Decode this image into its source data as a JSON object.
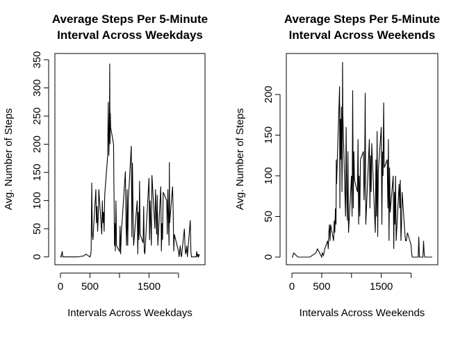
{
  "chart_data": [
    {
      "type": "line",
      "title": [
        "Average Steps Per 5-Minute",
        "Interval Across Weekdays"
      ],
      "x_label": "Intervals Across Weekdays",
      "y_label": "Avg. Number of Steps",
      "color": "#000000",
      "xlim": [
        -94.2,
        2449.2
      ],
      "ylim": [
        -13.9,
        361.1
      ],
      "xticks": [
        0,
        500,
        {
          "value": 1000,
          "label": null
        },
        1500,
        {
          "value": 2000,
          "label": null
        }
      ],
      "yticks": [
        0,
        50,
        100,
        150,
        200,
        250,
        300,
        350
      ],
      "x": [
        0,
        10,
        30,
        40,
        100,
        200,
        300,
        400,
        430,
        500,
        510,
        520,
        530,
        540,
        550,
        600,
        610,
        620,
        630,
        640,
        650,
        700,
        710,
        720,
        730,
        740,
        750,
        800,
        810,
        820,
        830,
        835,
        840,
        845,
        850,
        900,
        905,
        910,
        915,
        920,
        930,
        940,
        950,
        1000,
        1010,
        1020,
        1030,
        1100,
        1110,
        1120,
        1130,
        1140,
        1150,
        1200,
        1210,
        1220,
        1230,
        1240,
        1300,
        1310,
        1320,
        1330,
        1340,
        1350,
        1400,
        1410,
        1420,
        1430,
        1500,
        1510,
        1520,
        1530,
        1540,
        1550,
        1600,
        1610,
        1620,
        1630,
        1640,
        1650,
        1700,
        1710,
        1720,
        1730,
        1740,
        1800,
        1810,
        1820,
        1830,
        1840,
        1845,
        1850,
        1900,
        1910,
        1920,
        1930,
        2000,
        2010,
        2030,
        2040,
        2050,
        2100,
        2110,
        2120,
        2130,
        2140,
        2150,
        2200,
        2210,
        2220,
        2300,
        2310,
        2320,
        2330,
        2340,
        2355
      ],
      "values": [
        2,
        0,
        10,
        0,
        0,
        0,
        0,
        2,
        5,
        0,
        3,
        10,
        132,
        40,
        30,
        120,
        60,
        90,
        45,
        70,
        120,
        40,
        100,
        60,
        80,
        45,
        110,
        180,
        275,
        180,
        240,
        343,
        200,
        255,
        230,
        200,
        135,
        90,
        20,
        60,
        10,
        100,
        20,
        10,
        55,
        5,
        40,
        152,
        60,
        20,
        120,
        20,
        100,
        197,
        35,
        167,
        80,
        20,
        100,
        5,
        80,
        30,
        135,
        40,
        25,
        90,
        10,
        5,
        140,
        30,
        100,
        60,
        20,
        145,
        50,
        120,
        80,
        40,
        110,
        20,
        125,
        10,
        60,
        30,
        115,
        100,
        40,
        120,
        70,
        20,
        168,
        60,
        125,
        80,
        10,
        40,
        10,
        0,
        20,
        5,
        0,
        50,
        20,
        5,
        10,
        20,
        0,
        65,
        10,
        0,
        0,
        10,
        0,
        5,
        0,
        5
      ]
    },
    {
      "type": "line",
      "title": [
        "Average Steps Per 5-Minute",
        "Interval Across Weekends"
      ],
      "x_label": "Intervals Across Weekends",
      "y_label": "Avg. Number of Steps",
      "color": "#000000",
      "xlim": [
        -94.2,
        2449.2
      ],
      "ylim": [
        -9.4,
        250.4
      ],
      "xticks": [
        0,
        500,
        {
          "value": 1000,
          "label": null
        },
        1500,
        {
          "value": 2000,
          "label": null
        }
      ],
      "yticks": [
        0,
        50,
        100,
        150,
        200
      ],
      "x": [
        0,
        10,
        30,
        100,
        200,
        300,
        400,
        430,
        500,
        510,
        530,
        550,
        600,
        610,
        620,
        630,
        640,
        650,
        700,
        710,
        720,
        730,
        740,
        745,
        750,
        800,
        805,
        810,
        815,
        820,
        830,
        840,
        845,
        850,
        855,
        900,
        910,
        920,
        930,
        940,
        950,
        1000,
        1010,
        1020,
        1030,
        1040,
        1050,
        1100,
        1110,
        1120,
        1130,
        1140,
        1150,
        1200,
        1210,
        1220,
        1230,
        1240,
        1300,
        1310,
        1320,
        1330,
        1340,
        1400,
        1410,
        1420,
        1430,
        1440,
        1450,
        1500,
        1510,
        1520,
        1530,
        1540,
        1550,
        1600,
        1610,
        1620,
        1630,
        1640,
        1650,
        1700,
        1710,
        1720,
        1730,
        1740,
        1750,
        1800,
        1810,
        1820,
        1830,
        1840,
        1850,
        1900,
        1910,
        1920,
        1930,
        1940,
        2000,
        2010,
        2020,
        2100,
        2120,
        2130,
        2140,
        2200,
        2210,
        2220,
        2230,
        2300,
        2310,
        2320,
        2355
      ],
      "values": [
        0,
        0,
        5,
        0,
        0,
        0,
        5,
        10,
        0,
        5,
        2,
        10,
        20,
        10,
        30,
        40,
        20,
        40,
        20,
        45,
        30,
        60,
        40,
        120,
        90,
        210,
        60,
        140,
        170,
        120,
        185,
        80,
        120,
        240,
        175,
        50,
        160,
        80,
        45,
        130,
        30,
        100,
        50,
        205,
        60,
        130,
        95,
        80,
        145,
        40,
        100,
        50,
        120,
        130,
        70,
        95,
        202,
        40,
        145,
        60,
        125,
        80,
        140,
        30,
        120,
        50,
        155,
        25,
        105,
        160,
        40,
        130,
        100,
        190,
        110,
        120,
        60,
        145,
        20,
        110,
        55,
        100,
        10,
        80,
        40,
        100,
        20,
        90,
        60,
        95,
        20,
        40,
        80,
        25,
        20,
        20,
        25,
        30,
        15,
        5,
        0,
        0,
        0,
        25,
        0,
        0,
        20,
        5,
        0,
        0,
        0,
        0,
        0
      ]
    }
  ]
}
